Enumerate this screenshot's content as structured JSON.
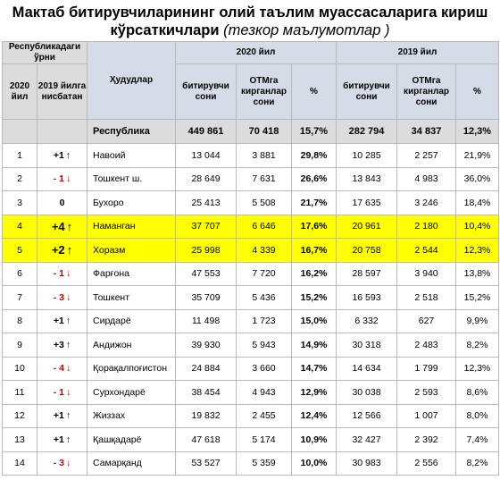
{
  "title": {
    "line1": "Мактаб битирувчиларининг олий таълим муассасаларига кириш",
    "line2": "кўрсаткичлари",
    "note": "(тезкор маълумотлар )"
  },
  "headers": {
    "rank_group": "Республикадаги ўрни",
    "rank_2020": "2020 йил",
    "rank_change": "2019 йилга нисбатан",
    "region": "Ҳудудлар",
    "year2020": "2020 йил",
    "year2019": "2019 йил",
    "graduates": "битирувчи сони",
    "entered": "ОТМга кирганлар сони",
    "percent": "%"
  },
  "republic": {
    "label": "Республика",
    "g2020": "449 861",
    "e2020": "70 418",
    "p2020": "15,7%",
    "g2019": "282 794",
    "e2019": "34 837",
    "p2019": "12,3%"
  },
  "rows": [
    {
      "rank": "1",
      "change": "+1",
      "dir": "up",
      "region": "Навоий",
      "g2020": "13 044",
      "e2020": "3 881",
      "p2020": "29,8%",
      "g2019": "10 285",
      "e2019": "2 257",
      "p2019": "21,9%",
      "hl": false
    },
    {
      "rank": "2",
      "change": "- 1",
      "dir": "down",
      "region": "Тошкент ш.",
      "g2020": "28 649",
      "e2020": "7 631",
      "p2020": "26,6%",
      "g2019": "13 843",
      "e2019": "4 983",
      "p2019": "36,0%",
      "hl": false
    },
    {
      "rank": "3",
      "change": "0",
      "dir": "none",
      "region": "Бухоро",
      "g2020": "25 413",
      "e2020": "5 508",
      "p2020": "21,7%",
      "g2019": "17 635",
      "e2019": "3 246",
      "p2019": "18,4%",
      "hl": false
    },
    {
      "rank": "4",
      "change": "+4",
      "dir": "up",
      "region": "Наманган",
      "g2020": "37 707",
      "e2020": "6 646",
      "p2020": "17,6%",
      "g2019": "20 961",
      "e2019": "2 180",
      "p2019": "10,4%",
      "hl": true
    },
    {
      "rank": "5",
      "change": "+2",
      "dir": "up",
      "region": "Хоразм",
      "g2020": "25 998",
      "e2020": "4 339",
      "p2020": "16,7%",
      "g2019": "20 758",
      "e2019": "2 544",
      "p2019": "12,3%",
      "hl": true
    },
    {
      "rank": "6",
      "change": "- 1",
      "dir": "down",
      "region": "Фарғона",
      "g2020": "47 553",
      "e2020": "7 720",
      "p2020": "16,2%",
      "g2019": "28 597",
      "e2019": "3 940",
      "p2019": "13,8%",
      "hl": false
    },
    {
      "rank": "7",
      "change": "- 3",
      "dir": "down",
      "region": "Тошкент",
      "g2020": "35 709",
      "e2020": "5 436",
      "p2020": "15,2%",
      "g2019": "16 593",
      "e2019": "2 518",
      "p2019": "15,2%",
      "hl": false
    },
    {
      "rank": "8",
      "change": "+1",
      "dir": "up",
      "region": "Сирдарё",
      "g2020": "11 498",
      "e2020": "1 723",
      "p2020": "15,0%",
      "g2019": "6 332",
      "e2019": "627",
      "p2019": "9,9%",
      "hl": false
    },
    {
      "rank": "9",
      "change": "+3",
      "dir": "up",
      "region": "Андижон",
      "g2020": "39 930",
      "e2020": "5 943",
      "p2020": "14,9%",
      "g2019": "30 318",
      "e2019": "2 483",
      "p2019": "8,2%",
      "hl": false
    },
    {
      "rank": "10",
      "change": "- 4",
      "dir": "down",
      "region": "Қорақалпоғистон",
      "g2020": "24 884",
      "e2020": "3 660",
      "p2020": "14,7%",
      "g2019": "14 634",
      "e2019": "1 799",
      "p2019": "12,3%",
      "hl": false
    },
    {
      "rank": "11",
      "change": "- 1",
      "dir": "down",
      "region": "Сурхондарё",
      "g2020": "38 454",
      "e2020": "4 943",
      "p2020": "12,9%",
      "g2019": "30 038",
      "e2019": "2 593",
      "p2019": "8,6%",
      "hl": false
    },
    {
      "rank": "12",
      "change": "+1",
      "dir": "up",
      "region": "Жиззах",
      "g2020": "19 832",
      "e2020": "2 455",
      "p2020": "12,4%",
      "g2019": "12 566",
      "e2019": "1 007",
      "p2019": "8,0%",
      "hl": false
    },
    {
      "rank": "13",
      "change": "+1",
      "dir": "up",
      "region": "Қашқадарё",
      "g2020": "47 618",
      "e2020": "5 174",
      "p2020": "10,9%",
      "g2019": "32 427",
      "e2019": "2 392",
      "p2019": "7,4%",
      "hl": false
    },
    {
      "rank": "14",
      "change": "- 3",
      "dir": "down",
      "region": "Самарқанд",
      "g2020": "53 527",
      "e2020": "5 359",
      "p2020": "10,0%",
      "g2019": "30 983",
      "e2019": "2 556",
      "p2019": "8,2%",
      "hl": false
    }
  ],
  "arrows": {
    "up": "↑",
    "down": "↓"
  },
  "colors": {
    "highlight": "#ffff00",
    "down": "#c00000",
    "header": "#dcdcdc"
  }
}
